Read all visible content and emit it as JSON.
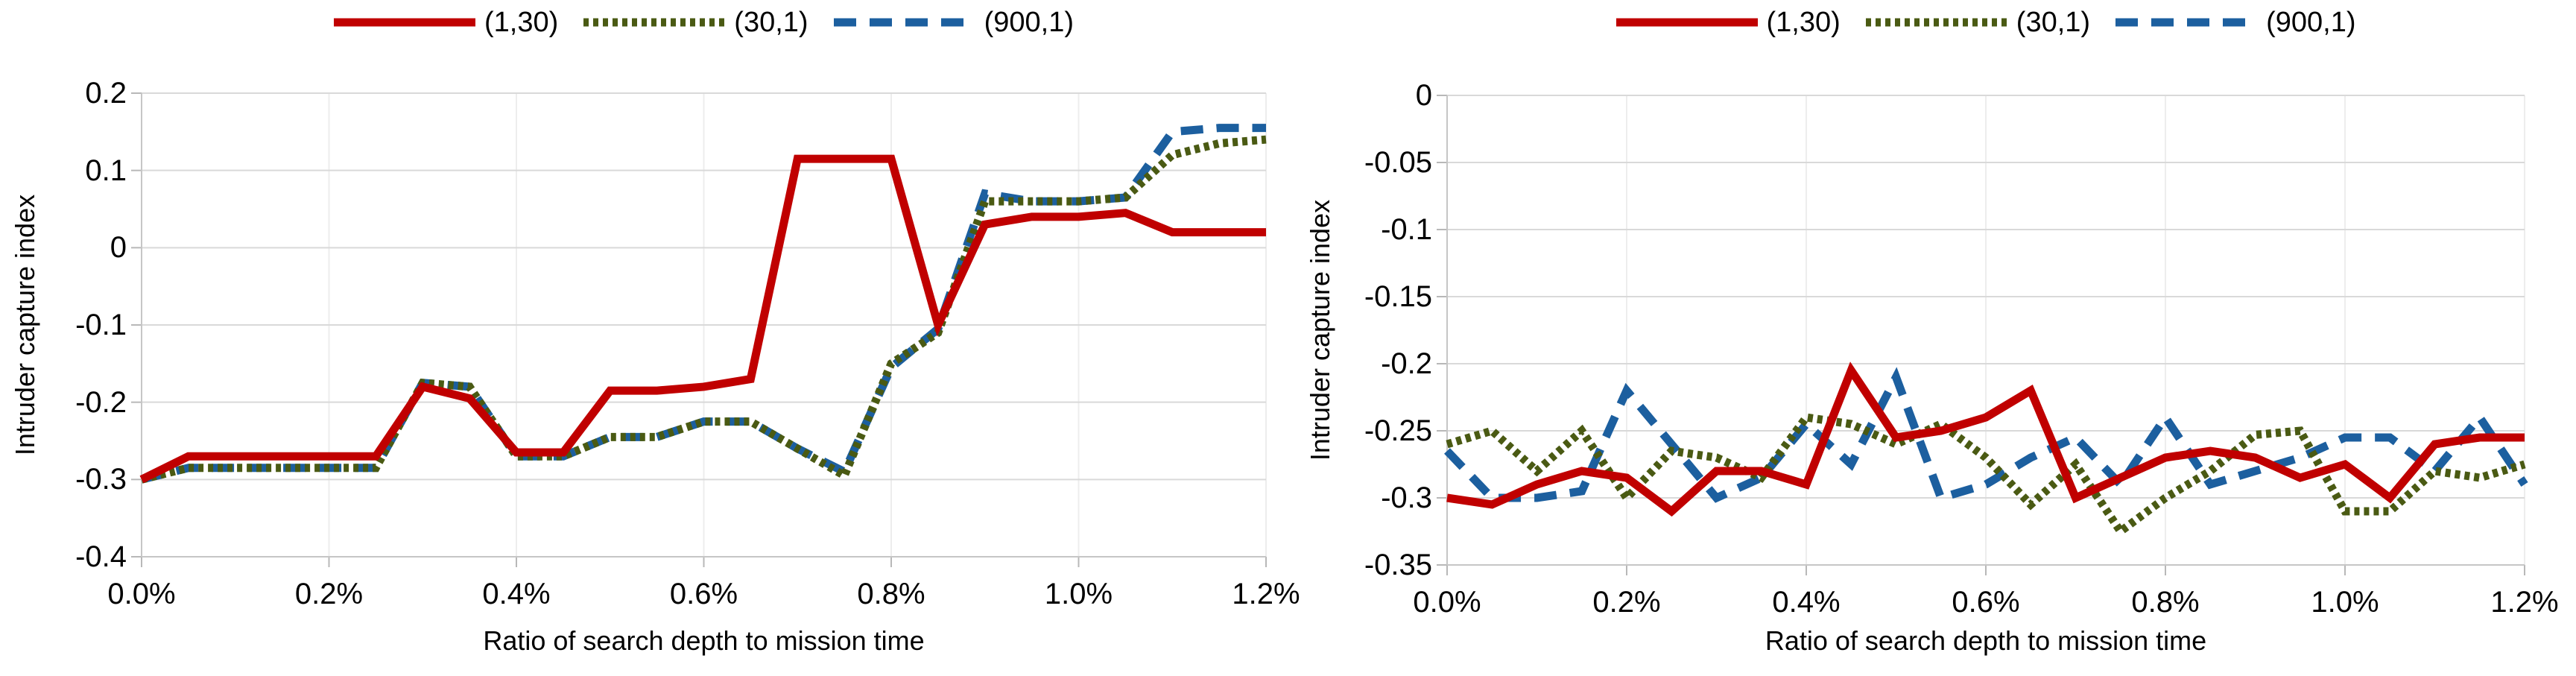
{
  "page": {
    "background": "#ffffff"
  },
  "chart_data": [
    {
      "type": "line",
      "position": "left",
      "title": "",
      "xlabel": "Ratio of search depth to mission time",
      "ylabel": "Intruder capture index",
      "x": [
        0.0,
        0.05,
        0.1,
        0.15,
        0.2,
        0.25,
        0.3,
        0.35,
        0.4,
        0.45,
        0.5,
        0.55,
        0.6,
        0.65,
        0.7,
        0.75,
        0.8,
        0.85,
        0.9,
        0.95,
        1.0,
        1.05,
        1.1,
        1.15,
        1.2
      ],
      "x_unit": "%",
      "x_tick_labels": [
        "0.0%",
        "0.2%",
        "0.4%",
        "0.6%",
        "0.8%",
        "1.0%",
        "1.2%"
      ],
      "ylim": [
        -0.4,
        0.2
      ],
      "yticks": [
        0.2,
        0.1,
        0,
        -0.1,
        -0.2,
        -0.3,
        -0.4
      ],
      "ytick_labels": [
        "0.2",
        "0.1",
        "0",
        "-0.1",
        "-0.2",
        "-0.3",
        "-0.4"
      ],
      "grid": true,
      "legend_position": "top",
      "series": [
        {
          "name": "(1,30)",
          "color": "#c00000",
          "dash": "solid",
          "values": [
            -0.3,
            -0.27,
            -0.27,
            -0.27,
            -0.27,
            -0.27,
            -0.18,
            -0.195,
            -0.265,
            -0.265,
            -0.185,
            -0.185,
            -0.18,
            -0.17,
            0.115,
            0.115,
            0.115,
            -0.1,
            0.03,
            0.04,
            0.04,
            0.045,
            0.02,
            0.02,
            0.02
          ]
        },
        {
          "name": "(30,1)",
          "color": "#4a5a13",
          "dash": "dotted",
          "values": [
            -0.3,
            -0.285,
            -0.285,
            -0.285,
            -0.285,
            -0.285,
            -0.175,
            -0.18,
            -0.27,
            -0.27,
            -0.245,
            -0.245,
            -0.225,
            -0.225,
            -0.26,
            -0.295,
            -0.15,
            -0.11,
            0.06,
            0.06,
            0.06,
            0.065,
            0.12,
            0.135,
            0.14
          ]
        },
        {
          "name": "(900,1)",
          "color": "#1c5f9f",
          "dash": "dashed",
          "values": [
            -0.3,
            -0.285,
            -0.285,
            -0.285,
            -0.285,
            -0.285,
            -0.175,
            -0.18,
            -0.27,
            -0.27,
            -0.245,
            -0.245,
            -0.225,
            -0.225,
            -0.26,
            -0.29,
            -0.155,
            -0.105,
            0.07,
            0.06,
            0.06,
            0.065,
            0.15,
            0.155,
            0.155
          ]
        }
      ]
    },
    {
      "type": "line",
      "position": "right",
      "title": "",
      "xlabel": "Ratio of search depth to mission time",
      "ylabel": "Intruder capture index",
      "x": [
        0.0,
        0.05,
        0.1,
        0.15,
        0.2,
        0.25,
        0.3,
        0.35,
        0.4,
        0.45,
        0.5,
        0.55,
        0.6,
        0.65,
        0.7,
        0.75,
        0.8,
        0.85,
        0.9,
        0.95,
        1.0,
        1.05,
        1.1,
        1.15,
        1.2
      ],
      "x_unit": "%",
      "x_tick_labels": [
        "0.0%",
        "0.2%",
        "0.4%",
        "0.6%",
        "0.8%",
        "1.0%",
        "1.2%"
      ],
      "ylim": [
        -0.35,
        0
      ],
      "yticks": [
        0,
        -0.05,
        -0.1,
        -0.15,
        -0.2,
        -0.25,
        -0.3,
        -0.35
      ],
      "ytick_labels": [
        "0",
        "-0.05",
        "-0.1",
        "-0.15",
        "-0.2",
        "-0.25",
        "-0.3",
        "-0.35"
      ],
      "grid": true,
      "legend_position": "top",
      "series": [
        {
          "name": "(1,30)",
          "color": "#c00000",
          "dash": "solid",
          "values": [
            -0.3,
            -0.305,
            -0.29,
            -0.28,
            -0.285,
            -0.31,
            -0.28,
            -0.28,
            -0.29,
            -0.205,
            -0.255,
            -0.25,
            -0.24,
            -0.22,
            -0.3,
            -0.285,
            -0.27,
            -0.265,
            -0.27,
            -0.285,
            -0.275,
            -0.3,
            -0.26,
            -0.255,
            -0.255
          ]
        },
        {
          "name": "(30,1)",
          "color": "#4a5a13",
          "dash": "dotted",
          "values": [
            -0.26,
            -0.25,
            -0.28,
            -0.25,
            -0.3,
            -0.265,
            -0.27,
            -0.285,
            -0.24,
            -0.245,
            -0.26,
            -0.245,
            -0.27,
            -0.305,
            -0.275,
            -0.325,
            -0.3,
            -0.28,
            -0.253,
            -0.25,
            -0.31,
            -0.31,
            -0.28,
            -0.285,
            -0.275
          ]
        },
        {
          "name": "(900,1)",
          "color": "#1c5f9f",
          "dash": "dashed",
          "values": [
            -0.265,
            -0.3,
            -0.3,
            -0.295,
            -0.22,
            -0.26,
            -0.3,
            -0.285,
            -0.245,
            -0.275,
            -0.21,
            -0.3,
            -0.29,
            -0.27,
            -0.255,
            -0.29,
            -0.24,
            -0.29,
            -0.28,
            -0.27,
            -0.255,
            -0.255,
            -0.28,
            -0.24,
            -0.29
          ]
        }
      ]
    }
  ],
  "style": {
    "gridline_color": "#d9d9d9",
    "vertical_gridline_color": "#ededed",
    "axis_color": "#c6c6c6",
    "tick_color": "#b8b8b8",
    "text_color": "#000000"
  }
}
